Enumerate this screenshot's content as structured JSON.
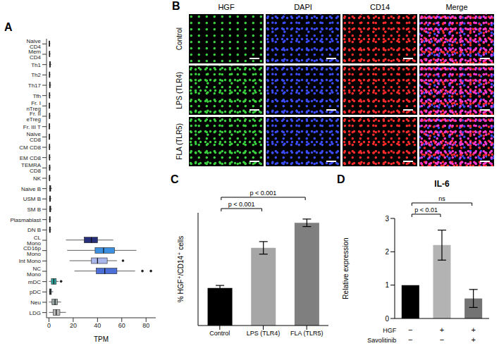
{
  "chart_data": [
    {
      "panel": "A",
      "type": "box",
      "orientation": "horizontal",
      "xlabel": "TPM",
      "categories": [
        "Naive CD4",
        "Mem CD4",
        "Th1",
        "Th2",
        "Th17",
        "Tfh",
        "Fr. I nTreg",
        "Fr. II eTreg",
        "Fr. III T",
        "Naive CD8",
        "CM CD8",
        "EM CD8",
        "TEMRA CD8",
        "NK",
        "Naive B",
        "USM B",
        "SM B",
        "Plasmablast",
        "DN B",
        "CL Mono",
        "CD16p Mono",
        "Int Mono",
        "NC Mono",
        "mDC",
        "pDC",
        "Neu",
        "LDG"
      ],
      "min": [
        0,
        0,
        0,
        0,
        0,
        0,
        0,
        0,
        0,
        0,
        0,
        0,
        0,
        0,
        0,
        0,
        0,
        0,
        0,
        14,
        15,
        17,
        21,
        0,
        0,
        0,
        0
      ],
      "q1": [
        0.2,
        0.3,
        0.5,
        0.3,
        0.4,
        0.3,
        0.2,
        0.3,
        0.2,
        0.2,
        0.3,
        0.3,
        0.3,
        0.3,
        0.6,
        0.5,
        0.6,
        0.4,
        0.4,
        29,
        38,
        35,
        39,
        2,
        0.5,
        2.5,
        3.5
      ],
      "median": [
        0.4,
        0.5,
        0.8,
        0.5,
        0.7,
        0.5,
        0.4,
        0.5,
        0.4,
        0.4,
        0.5,
        0.5,
        0.6,
        0.5,
        1,
        0.9,
        1,
        0.7,
        0.7,
        35,
        45,
        40,
        46,
        4,
        1,
        5,
        6
      ],
      "q3": [
        0.7,
        0.8,
        1.2,
        0.8,
        1,
        0.8,
        0.6,
        0.8,
        0.6,
        0.6,
        0.7,
        0.8,
        0.9,
        0.8,
        1.5,
        1.3,
        1.5,
        1,
        1.1,
        40,
        54,
        48,
        56,
        6,
        2,
        7,
        9
      ],
      "max": [
        1.2,
        1.4,
        2,
        1.3,
        1.8,
        1.3,
        1,
        1.3,
        1,
        1,
        1.2,
        1.4,
        1.5,
        1.3,
        2.6,
        2.2,
        2.5,
        1.7,
        1.8,
        53,
        72,
        56,
        71,
        8,
        3.5,
        10,
        14
      ],
      "outliers": [
        [],
        [],
        [],
        [],
        [],
        [],
        [],
        [],
        [],
        [],
        [],
        [],
        [],
        [],
        [],
        [],
        [],
        [],
        [],
        [],
        [],
        [
          61
        ],
        [
          77,
          84
        ],
        [
          10
        ],
        [],
        [],
        []
      ],
      "colors": [
        "#2f3a4f",
        "#2f3a4f",
        "#2f3a4f",
        "#2f3a4f",
        "#2f3a4f",
        "#2f3a4f",
        "#2f3a4f",
        "#2f3a4f",
        "#2f3a4f",
        "#2f3a4f",
        "#2f3a4f",
        "#2f3a4f",
        "#2f3a4f",
        "#2f3a4f",
        "#2f3a4f",
        "#2f3a4f",
        "#2f3a4f",
        "#2f3a4f",
        "#2f3a4f",
        "#262f7a",
        "#3d8fe0",
        "#a9b7ec",
        "#4b6fd6",
        "#2ea7a0",
        "#3f5f66",
        "#9aa6a6",
        "#b8b8b8"
      ],
      "xlim": [
        -2,
        88
      ],
      "xticks": [
        0,
        20,
        40,
        60,
        80
      ],
      "grid": false
    },
    {
      "panel": "C",
      "type": "bar",
      "ylabel": "% HGF⁺/CD14⁺ cells",
      "categories": [
        "Control",
        "LPS (TLR4)",
        "FLA (TLR5)"
      ],
      "values": [
        30,
        62,
        82
      ],
      "errors": [
        2,
        5,
        3
      ],
      "colors": [
        "#000000",
        "#a6a6a6",
        "#7f7f7f"
      ],
      "ylim": [
        0,
        90
      ],
      "tick_labels": "x",
      "annotations": [
        {
          "text": "p < 0.001",
          "from": 0,
          "to": 1
        },
        {
          "text": "p < 0.001",
          "from": 0,
          "to": 2
        }
      ]
    },
    {
      "panel": "D",
      "type": "bar",
      "title": "IL-6",
      "ylabel": "Relative expression",
      "categories": [
        null,
        null,
        null
      ],
      "x_table": [
        {
          "label": "HGF",
          "values": [
            "−",
            "+",
            "+"
          ]
        },
        {
          "label": "Savolitinib",
          "values": [
            "−",
            "−",
            "+"
          ]
        }
      ],
      "values": [
        1,
        2.2,
        0.6
      ],
      "errors": [
        0,
        0.45,
        0.27
      ],
      "colors": [
        "#000000",
        "#b3b3b3",
        "#737373"
      ],
      "ylim": [
        0,
        3
      ],
      "yticks": [
        0,
        1,
        2,
        3
      ],
      "annotations": [
        {
          "text": "p < 0.01",
          "from": 0,
          "to": 1
        },
        {
          "text": "ns",
          "from": 0,
          "to": 2
        }
      ]
    }
  ],
  "image_panel": {
    "panel": "B",
    "columns": [
      "HGF",
      "DAPI",
      "CD14",
      "Merge"
    ],
    "rows": [
      "Control",
      "LPS (TLR4)",
      "FLA (TLR5)"
    ]
  }
}
